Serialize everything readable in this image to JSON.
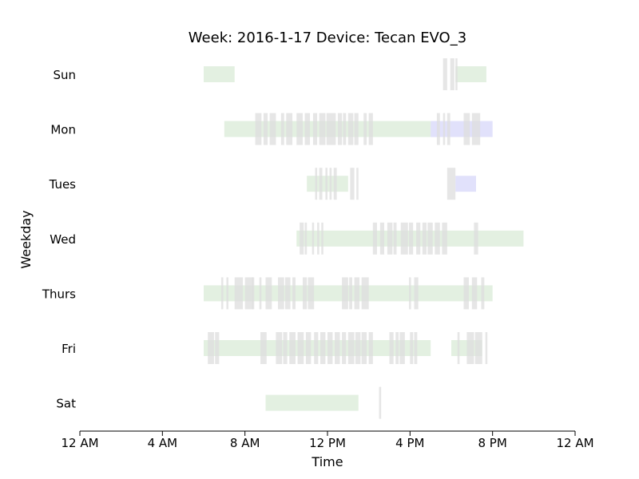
{
  "chart_data": {
    "type": "timeline",
    "title": "Week: 2016-1-17  Device: Tecan EVO_3",
    "xlabel": "Time",
    "ylabel": "Weekday",
    "x_unit": "hour of day",
    "xlim": [
      0,
      24
    ],
    "x_ticks": [
      0,
      4,
      8,
      12,
      16,
      20,
      24
    ],
    "x_tick_labels": [
      "12 AM",
      "4 AM",
      "8 AM",
      "12 PM",
      "4 PM",
      "8 PM",
      "12 AM"
    ],
    "categories": [
      "Sun",
      "Mon",
      "Tues",
      "Wed",
      "Thurs",
      "Fri",
      "Sat"
    ],
    "grid": false,
    "colors": {
      "green": "#e3f0e1",
      "blue": "#e1e1fb",
      "gray": "#dedede"
    },
    "series": [
      {
        "color": "green",
        "segments": [
          [
            "Sun",
            6.0,
            7.5
          ],
          [
            "Sun",
            18.2,
            19.7
          ],
          [
            "Mon",
            7.0,
            17.3
          ],
          [
            "Tues",
            11.0,
            13.0
          ],
          [
            "Wed",
            10.5,
            21.5
          ],
          [
            "Thurs",
            6.0,
            20.0
          ],
          [
            "Fri",
            6.0,
            17.0
          ],
          [
            "Fri",
            18.0,
            19.5
          ],
          [
            "Sat",
            9.0,
            13.5
          ]
        ]
      },
      {
        "color": "blue",
        "segments": [
          [
            "Mon",
            17.0,
            20.0
          ],
          [
            "Tues",
            18.2,
            19.2
          ]
        ]
      },
      {
        "color": "gray",
        "segments": [
          [
            "Sun",
            17.6,
            17.8
          ],
          [
            "Sun",
            17.95,
            18.15
          ],
          [
            "Sun",
            18.2,
            18.3
          ],
          [
            "Mon",
            8.5,
            8.8
          ],
          [
            "Mon",
            8.9,
            9.1
          ],
          [
            "Mon",
            9.2,
            9.5
          ],
          [
            "Mon",
            9.75,
            9.9
          ],
          [
            "Mon",
            10.0,
            10.3
          ],
          [
            "Mon",
            10.5,
            10.8
          ],
          [
            "Mon",
            10.9,
            11.15
          ],
          [
            "Mon",
            11.3,
            11.5
          ],
          [
            "Mon",
            11.6,
            11.9
          ],
          [
            "Mon",
            11.95,
            12.4
          ],
          [
            "Mon",
            12.5,
            12.7
          ],
          [
            "Mon",
            12.75,
            12.9
          ],
          [
            "Mon",
            13.0,
            13.25
          ],
          [
            "Mon",
            13.3,
            13.5
          ],
          [
            "Mon",
            13.75,
            13.9
          ],
          [
            "Mon",
            14.0,
            14.2
          ],
          [
            "Mon",
            17.3,
            17.45
          ],
          [
            "Mon",
            17.6,
            17.7
          ],
          [
            "Mon",
            17.8,
            17.95
          ],
          [
            "Mon",
            18.6,
            18.9
          ],
          [
            "Mon",
            19.0,
            19.2
          ],
          [
            "Mon",
            19.2,
            19.4
          ],
          [
            "Tues",
            11.4,
            11.5
          ],
          [
            "Tues",
            11.6,
            11.75
          ],
          [
            "Tues",
            11.9,
            12.0
          ],
          [
            "Tues",
            12.1,
            12.2
          ],
          [
            "Tues",
            12.3,
            12.45
          ],
          [
            "Tues",
            13.1,
            13.3
          ],
          [
            "Tues",
            13.4,
            13.5
          ],
          [
            "Tues",
            17.8,
            18.2
          ],
          [
            "Wed",
            10.65,
            10.85
          ],
          [
            "Wed",
            10.9,
            11.0
          ],
          [
            "Wed",
            11.25,
            11.35
          ],
          [
            "Wed",
            11.5,
            11.6
          ],
          [
            "Wed",
            11.7,
            11.8
          ],
          [
            "Wed",
            14.2,
            14.4
          ],
          [
            "Wed",
            14.55,
            14.75
          ],
          [
            "Wed",
            14.9,
            15.15
          ],
          [
            "Wed",
            15.2,
            15.35
          ],
          [
            "Wed",
            15.55,
            15.9
          ],
          [
            "Wed",
            15.95,
            16.15
          ],
          [
            "Wed",
            16.3,
            16.5
          ],
          [
            "Wed",
            16.6,
            16.8
          ],
          [
            "Wed",
            16.85,
            17.1
          ],
          [
            "Wed",
            17.2,
            17.45
          ],
          [
            "Wed",
            17.55,
            17.8
          ],
          [
            "Wed",
            19.1,
            19.3
          ],
          [
            "Thurs",
            6.85,
            6.95
          ],
          [
            "Thurs",
            7.1,
            7.2
          ],
          [
            "Thurs",
            7.5,
            7.9
          ],
          [
            "Thurs",
            8.0,
            8.4
          ],
          [
            "Thurs",
            8.35,
            8.45
          ],
          [
            "Thurs",
            8.7,
            8.8
          ],
          [
            "Thurs",
            9.0,
            9.3
          ],
          [
            "Thurs",
            9.6,
            9.9
          ],
          [
            "Thurs",
            9.95,
            10.2
          ],
          [
            "Thurs",
            10.3,
            10.45
          ],
          [
            "Thurs",
            10.8,
            11.0
          ],
          [
            "Thurs",
            11.05,
            11.35
          ],
          [
            "Thurs",
            12.7,
            13.0
          ],
          [
            "Thurs",
            13.05,
            13.2
          ],
          [
            "Thurs",
            13.3,
            13.55
          ],
          [
            "Thurs",
            13.65,
            14.0
          ],
          [
            "Thurs",
            15.95,
            16.05
          ],
          [
            "Thurs",
            16.2,
            16.4
          ],
          [
            "Thurs",
            18.6,
            18.85
          ],
          [
            "Thurs",
            19.0,
            19.25
          ],
          [
            "Thurs",
            19.45,
            19.6
          ],
          [
            "Fri",
            6.2,
            6.5
          ],
          [
            "Fri",
            6.55,
            6.75
          ],
          [
            "Fri",
            8.75,
            9.05
          ],
          [
            "Fri",
            9.5,
            9.8
          ],
          [
            "Fri",
            9.85,
            10.05
          ],
          [
            "Fri",
            10.15,
            10.45
          ],
          [
            "Fri",
            10.55,
            10.85
          ],
          [
            "Fri",
            10.95,
            11.2
          ],
          [
            "Fri",
            11.35,
            11.55
          ],
          [
            "Fri",
            11.65,
            11.9
          ],
          [
            "Fri",
            12.0,
            12.25
          ],
          [
            "Fri",
            12.35,
            12.6
          ],
          [
            "Fri",
            12.7,
            12.9
          ],
          [
            "Fri",
            13.0,
            13.3
          ],
          [
            "Fri",
            13.35,
            13.6
          ],
          [
            "Fri",
            13.65,
            13.9
          ],
          [
            "Fri",
            14.0,
            14.2
          ],
          [
            "Fri",
            15.0,
            15.2
          ],
          [
            "Fri",
            15.3,
            15.45
          ],
          [
            "Fri",
            15.5,
            15.75
          ],
          [
            "Fri",
            16.0,
            16.15
          ],
          [
            "Fri",
            16.2,
            16.35
          ],
          [
            "Fri",
            18.3,
            18.4
          ],
          [
            "Fri",
            18.75,
            19.1
          ],
          [
            "Fri",
            19.15,
            19.5
          ],
          [
            "Fri",
            19.65,
            19.75
          ],
          [
            "Sat",
            14.5,
            14.6
          ]
        ]
      }
    ]
  }
}
